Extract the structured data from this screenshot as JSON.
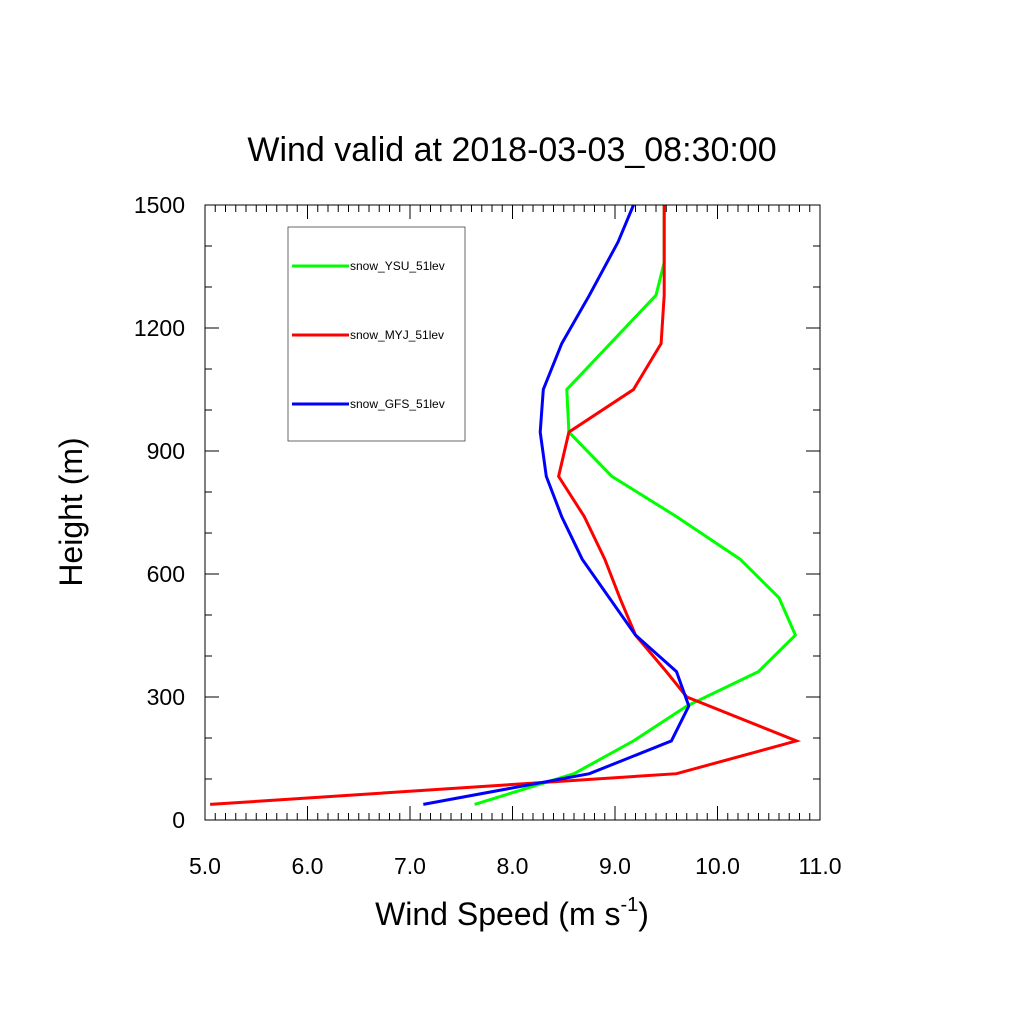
{
  "chart_data": {
    "type": "line",
    "title": "Wind valid at 2018-03-03_08:30:00",
    "xlabel": "Wind Speed (m s",
    "xlabel_sup": "-1",
    "xlabel_end": ")",
    "ylabel": "Height (m)",
    "xlim": [
      5.0,
      11.0
    ],
    "ylim": [
      0,
      1500
    ],
    "x_ticks": [
      "5.0",
      "6.0",
      "7.0",
      "8.0",
      "9.0",
      "10.0",
      "11.0"
    ],
    "y_ticks": [
      "0",
      "300",
      "600",
      "900",
      "1200",
      "1500"
    ],
    "legend_position": "top-left",
    "series": [
      {
        "name": "snow_YSU_51lev",
        "color": "#00ff00",
        "points": [
          [
            7.63,
            38
          ],
          [
            8.6,
            113
          ],
          [
            9.18,
            193
          ],
          [
            9.7,
            278
          ],
          [
            10.4,
            362
          ],
          [
            10.76,
            451
          ],
          [
            10.6,
            542
          ],
          [
            10.22,
            636
          ],
          [
            9.6,
            740
          ],
          [
            8.97,
            838
          ],
          [
            8.55,
            946
          ],
          [
            8.53,
            1050
          ],
          [
            9.4,
            1280
          ],
          [
            9.48,
            1360
          ],
          [
            9.48,
            1500
          ]
        ]
      },
      {
        "name": "snow_MYJ_51lev",
        "color": "#ff0000",
        "points": [
          [
            5.05,
            38
          ],
          [
            9.6,
            113
          ],
          [
            10.77,
            193
          ],
          [
            9.7,
            300
          ],
          [
            9.5,
            362
          ],
          [
            9.2,
            451
          ],
          [
            9.05,
            540
          ],
          [
            8.9,
            636
          ],
          [
            8.7,
            740
          ],
          [
            8.45,
            838
          ],
          [
            8.55,
            946
          ],
          [
            9.18,
            1050
          ],
          [
            9.45,
            1162
          ],
          [
            9.48,
            1280
          ],
          [
            9.48,
            1500
          ]
        ]
      },
      {
        "name": "snow_GFS_51lev",
        "color": "#0000ff",
        "points": [
          [
            7.13,
            38
          ],
          [
            8.75,
            113
          ],
          [
            9.55,
            193
          ],
          [
            9.72,
            278
          ],
          [
            9.6,
            362
          ],
          [
            9.2,
            451
          ],
          [
            8.68,
            636
          ],
          [
            8.48,
            740
          ],
          [
            8.33,
            838
          ],
          [
            8.27,
            946
          ],
          [
            8.3,
            1050
          ],
          [
            8.48,
            1162
          ],
          [
            8.75,
            1280
          ],
          [
            9.03,
            1410
          ],
          [
            9.18,
            1500
          ]
        ]
      }
    ]
  }
}
